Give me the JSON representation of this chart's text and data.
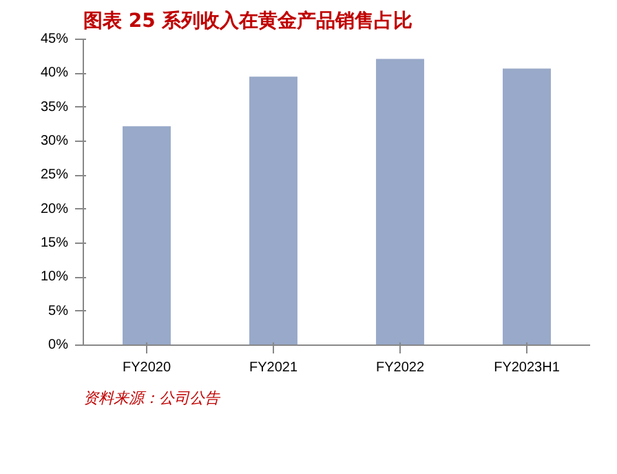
{
  "chart_data": {
    "type": "bar",
    "title": "图表 25    系列收入在黄金产品销售占比",
    "categories": [
      "FY2020",
      "FY2021",
      "FY2022",
      "FY2023H1"
    ],
    "values": [
      32.2,
      39.5,
      42.1,
      40.7
    ],
    "color": "#98a9c9",
    "ylim": [
      0,
      45
    ],
    "yticks": [
      {
        "value": 0,
        "label": "0%"
      },
      {
        "value": 5,
        "label": "5%"
      },
      {
        "value": 10,
        "label": "10%"
      },
      {
        "value": 15,
        "label": "15%"
      },
      {
        "value": 20,
        "label": "20%"
      },
      {
        "value": 25,
        "label": "25%"
      },
      {
        "value": 30,
        "label": "30%"
      },
      {
        "value": 35,
        "label": "35%"
      },
      {
        "value": 40,
        "label": "40%"
      },
      {
        "value": 45,
        "label": "45%"
      }
    ],
    "grid": false,
    "annotations": [
      "资料来源：公司公告"
    ]
  }
}
